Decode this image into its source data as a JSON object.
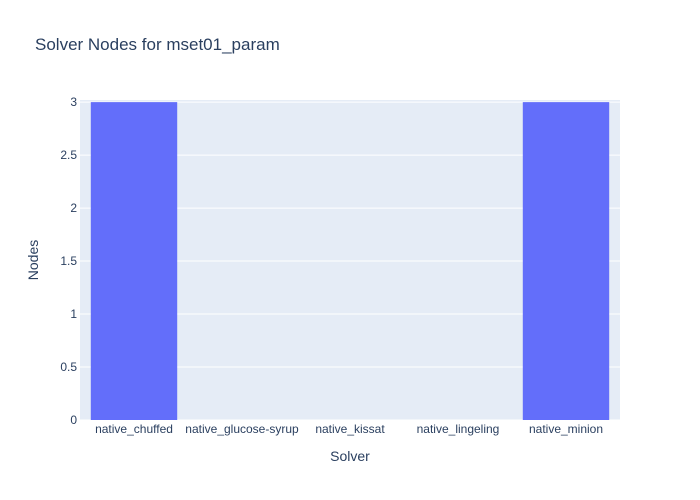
{
  "chart_data": {
    "type": "bar",
    "title": "Solver Nodes for mset01_param",
    "xlabel": "Solver",
    "ylabel": "Nodes",
    "categories": [
      "native_chuffed",
      "native_glucose-syrup",
      "native_kissat",
      "native_lingeling",
      "native_minion"
    ],
    "values": [
      3,
      0,
      0,
      0,
      3
    ],
    "ylim": [
      0,
      3.02
    ],
    "yticks": [
      "0",
      "0.5",
      "1",
      "1.5",
      "2",
      "2.5",
      "3"
    ],
    "grid": true,
    "colors": {
      "bar": "#636efa",
      "plot_bg": "#e5ecf6",
      "grid": "#ffffff",
      "text": "#2a3f5f"
    }
  }
}
